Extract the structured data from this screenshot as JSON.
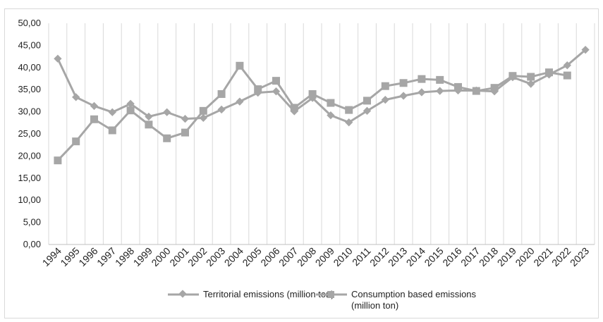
{
  "chart_data": {
    "type": "line",
    "title": "",
    "xlabel": "",
    "ylabel": "",
    "x": [
      "1994",
      "1995",
      "1996",
      "1997",
      "1998",
      "1999",
      "2000",
      "2001",
      "2002",
      "2003",
      "2004",
      "2005",
      "2006",
      "2007",
      "2008",
      "2009",
      "2010",
      "2011",
      "2012",
      "2013",
      "2014",
      "2015",
      "2016",
      "2017",
      "2018",
      "2019",
      "2020",
      "2021",
      "2022",
      "2023"
    ],
    "ylim": [
      0,
      50
    ],
    "yticks": [
      "0,00",
      "5,00",
      "10,00",
      "15,00",
      "20,00",
      "25,00",
      "30,00",
      "35,00",
      "40,00",
      "45,00",
      "50,00"
    ],
    "grid": "vertical",
    "legend_position": "bottom",
    "series": [
      {
        "name": "Territorial emissions (million ton)",
        "marker": "diamond",
        "color": "#a6a6a6",
        "values": [
          42.0,
          33.3,
          31.3,
          29.9,
          31.8,
          28.9,
          29.9,
          28.4,
          28.6,
          30.5,
          32.3,
          34.3,
          34.6,
          30.1,
          33.1,
          29.2,
          27.6,
          30.2,
          32.7,
          33.6,
          34.4,
          34.7,
          34.8,
          34.8,
          34.6,
          37.8,
          36.3,
          38.4,
          40.5,
          44.0
        ]
      },
      {
        "name": "Consumption based emissions (million ton)",
        "marker": "square",
        "color": "#a6a6a6",
        "values": [
          19.0,
          23.3,
          28.3,
          25.8,
          30.3,
          27.1,
          24.0,
          25.3,
          30.2,
          34.0,
          40.4,
          35.1,
          37.0,
          30.9,
          34.0,
          32.0,
          30.4,
          32.5,
          35.8,
          36.5,
          37.4,
          37.2,
          35.6,
          34.7,
          35.4,
          38.1,
          37.9,
          38.9,
          38.2,
          null
        ]
      }
    ]
  },
  "legend": {
    "territorial_label": "Territorial emissions (million ton)",
    "consumption_label": "Consumption based emissions (million ton)"
  }
}
